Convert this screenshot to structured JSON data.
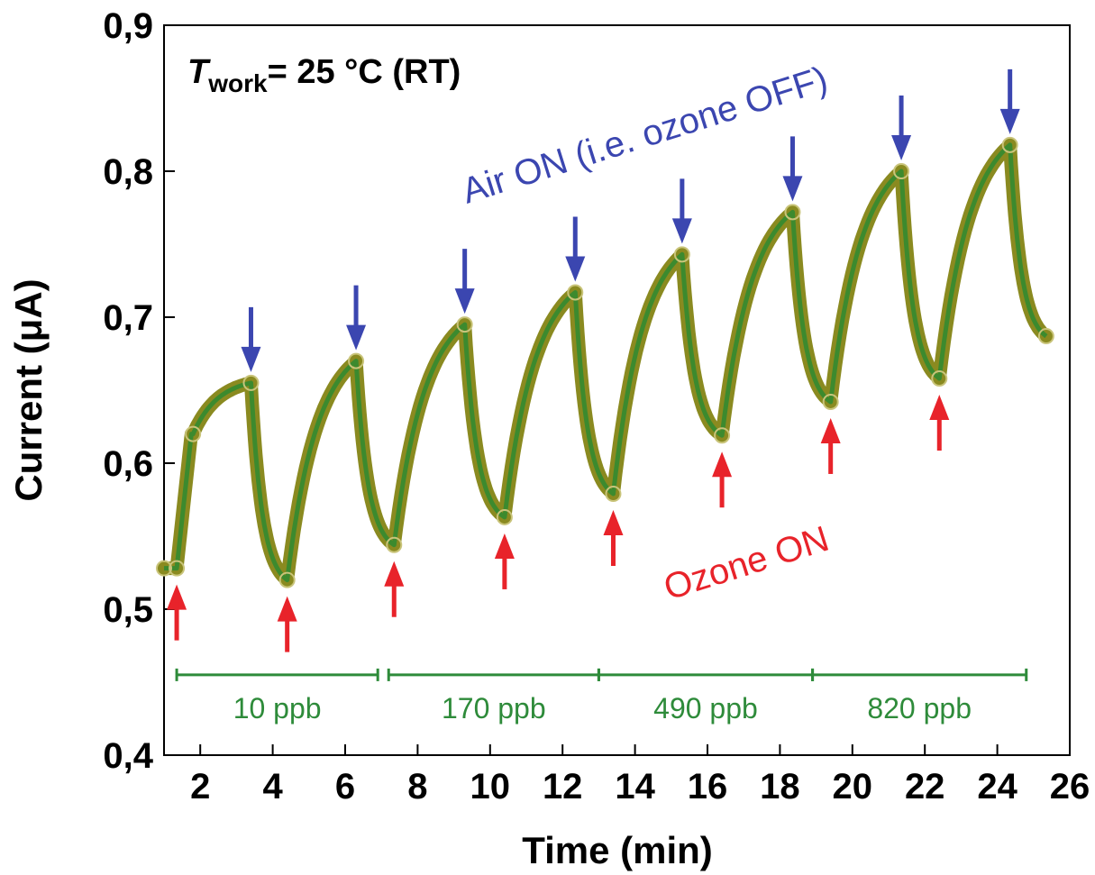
{
  "chart_data": {
    "type": "line",
    "xlabel": "Time (min)",
    "ylabel": "Current (μA)",
    "xlim": [
      1,
      26
    ],
    "ylim": [
      0.4,
      0.9
    ],
    "x_ticks": [
      2,
      4,
      6,
      8,
      10,
      12,
      14,
      16,
      18,
      20,
      22,
      24,
      26
    ],
    "y_ticks": [
      0.4,
      0.5,
      0.6,
      0.7,
      0.8,
      0.9
    ],
    "x_tick_labels": [
      "2",
      "4",
      "6",
      "8",
      "10",
      "12",
      "14",
      "16",
      "18",
      "20",
      "22",
      "24",
      "26"
    ],
    "y_tick_labels": [
      "0,4",
      "0,5",
      "0,6",
      "0,7",
      "0,8",
      "0,9"
    ],
    "series": [
      {
        "color": "#3c8a2e",
        "marker_color": "#8a8a20",
        "x": [
          1.0,
          1.35,
          1.8,
          3.4,
          4.4,
          6.3,
          7.35,
          9.3,
          10.4,
          12.35,
          13.4,
          15.3,
          16.4,
          18.35,
          19.4,
          21.35,
          22.4,
          24.35,
          25.35
        ],
        "y": [
          0.528,
          0.528,
          0.62,
          0.655,
          0.52,
          0.67,
          0.544,
          0.695,
          0.563,
          0.717,
          0.579,
          0.743,
          0.619,
          0.772,
          0.642,
          0.8,
          0.658,
          0.818,
          0.687
        ]
      }
    ],
    "air_on_times": [
      3.4,
      6.3,
      9.3,
      12.35,
      15.3,
      18.35,
      21.35,
      24.35
    ],
    "ozone_on_times": [
      1.35,
      4.4,
      7.35,
      10.4,
      13.4,
      16.4,
      19.4,
      22.4
    ],
    "concentration_ranges": [
      {
        "label": "10 ppb",
        "start": 1.35,
        "end": 6.9
      },
      {
        "label": "170 ppb",
        "start": 7.2,
        "end": 13.0
      },
      {
        "label": "490 ppb",
        "start": 13.0,
        "end": 18.9
      },
      {
        "label": "820 ppb",
        "start": 18.9,
        "end": 24.8
      }
    ],
    "annotations": {
      "twork_symbol": "T",
      "twork_sub": "work",
      "twork_value": "= 25 °C (RT)",
      "air_on": "Air ON (i.e. ozone OFF)",
      "ozone_on": "Ozone ON"
    },
    "colors": {
      "air_arrow": "#3b46b0",
      "ozone_arrow": "#e8232a",
      "range": "#2e8b3a"
    }
  }
}
